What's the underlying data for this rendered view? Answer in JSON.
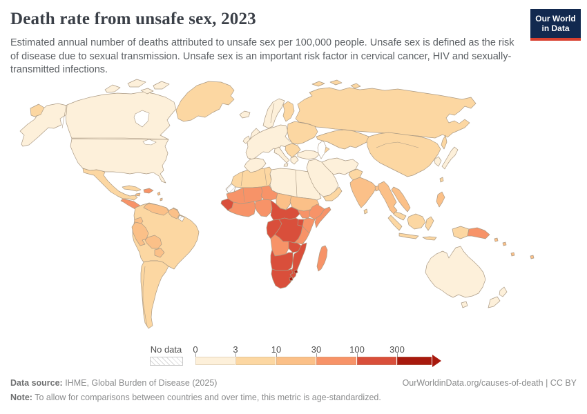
{
  "header": {
    "title": "Death rate from unsafe sex, 2023",
    "subtitle": "Estimated annual number of deaths attributed to unsafe sex per 100,000 people. Unsafe sex is defined as the risk of disease due to sexual transmission. Unsafe sex is an important risk factor in cervical cancer, HIV and sexually-transmitted infections."
  },
  "logo": {
    "line1": "Our World",
    "line2": "in Data",
    "bg": "#12294f",
    "accent": "#d8402f"
  },
  "legend": {
    "no_data_label": "No data",
    "ticks": [
      "0",
      "3",
      "10",
      "30",
      "100",
      "300"
    ]
  },
  "footer": {
    "data_source_label": "Data source:",
    "data_source": " IHME, Global Burden of Disease (2025)",
    "note_label": "Note:",
    "note": " To allow for comparisons between countries and over time, this metric is age-standardized.",
    "attribution": "OurWorldinData.org/causes-of-death | CC BY"
  },
  "chart_data": {
    "type": "choropleth",
    "title": "Death rate from unsafe sex, 2023",
    "metric": "deaths attributed to unsafe sex per 100,000 people",
    "year": 2023,
    "legend_thresholds": [
      0,
      3,
      10,
      30,
      100,
      300
    ],
    "no_data_color": "hatched",
    "border_color": "#ab9a84",
    "bins": [
      {
        "range": "0-3",
        "color": "#fdf0da"
      },
      {
        "range": "3-10",
        "color": "#fcd7a2"
      },
      {
        "range": "10-30",
        "color": "#fbc088"
      },
      {
        "range": "30-100",
        "color": "#f79368"
      },
      {
        "range": "100-300",
        "color": "#d94f3b"
      },
      {
        "range": "300+",
        "color": "#a81a0e"
      }
    ],
    "regions": {
      "alaska": 0,
      "canada": 0,
      "arctic-islands": 0,
      "united-states": 0,
      "greenland": 1,
      "iceland": 0,
      "mexico": 1,
      "central-america": 3,
      "cuba": 1,
      "hispaniola": 3,
      "jamaica": 2,
      "caribbean-islands": 2,
      "brazil": 1,
      "argentina-chile": 1,
      "venezuela": 2,
      "guyana-suriname": 2,
      "french-guiana": "nodata",
      "ecuador": 2,
      "peru": 2,
      "bolivia": 2,
      "paraguay": 2,
      "morocco-algeria": 1,
      "libya-egypt": 0,
      "western-sahara": "nodata",
      "mauritania-mali": 3,
      "niger": 3,
      "chad": 2,
      "sudan": 2,
      "senegal-guinea": 4,
      "west-africa-coast": 3,
      "nigeria": 3,
      "cameroon-car": 4,
      "south-sudan": 3,
      "ethiopia": 3,
      "somalia": 3,
      "kenya": 3,
      "uganda": 4,
      "gabon-congo": 4,
      "drc": 4,
      "tanzania": 3,
      "angola": 3,
      "zambia": 4,
      "mozambique-zimbabwe": 4,
      "namibia-botswana": 4,
      "south-africa": 4,
      "lesotho": 5,
      "eswatini": 5,
      "madagascar": 3,
      "scandinavia": 0,
      "finland": 1,
      "uk": 0,
      "ireland": 0,
      "western-europe": 0,
      "iberia": 0,
      "italy": 0,
      "balkans": 1,
      "greece": 0,
      "eastern-europe": 1,
      "russia": 1,
      "chukotka": 1,
      "sakhalin": 1,
      "svalbard": 1,
      "turkey": 0,
      "caucasus": 1,
      "middle-east": 0,
      "yemen-oman": 1,
      "iran-afghanistan": 0,
      "pakistan": 1,
      "central-asia": 1,
      "china-mongolia": 1,
      "korea": 0,
      "japan": 0,
      "india": 2,
      "sri-lanka": 1,
      "bangladesh": 2,
      "myanmar-thailand": 2,
      "indochina": 2,
      "malaysia": 1,
      "sumatra": 1,
      "java": 1,
      "borneo": 1,
      "sulawesi": 1,
      "lesser-sunda": 1,
      "philippines": 2,
      "taiwan": 1,
      "west-papua": 1,
      "papua-new-guinea": 3,
      "pacific-islands": 2,
      "australia": 0,
      "tasmania": 0,
      "new-zealand": 0
    }
  }
}
